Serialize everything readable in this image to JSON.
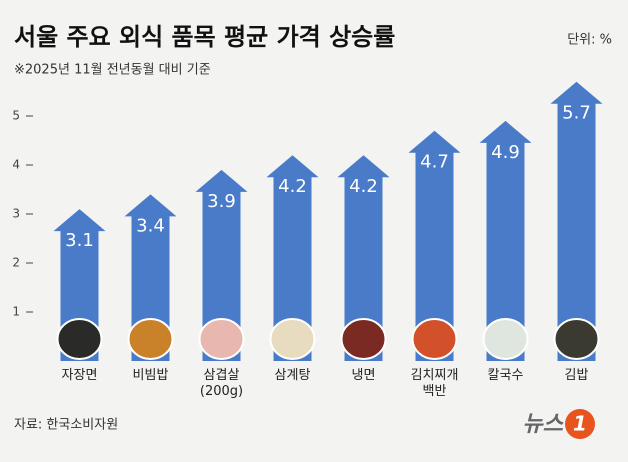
{
  "chart_data": {
    "type": "bar",
    "title": "서울 주요 외식 품목 평균 가격 상승률",
    "unit": "단위: %",
    "subtitle": "※2025년 11월 전년동월 대비 기준",
    "source": "자료: 한국소비자원",
    "logo": {
      "text": "뉴스",
      "number": "1"
    },
    "categories": [
      "자장면",
      "비빔밥",
      "삼겹살\n(200g)",
      "삼계탕",
      "냉면",
      "김치찌개\n백반",
      "칼국수",
      "김밥"
    ],
    "values": [
      3.1,
      3.4,
      3.9,
      4.2,
      4.2,
      4.7,
      4.9,
      5.7
    ],
    "color": "#4a7bc8",
    "ylim": [
      0,
      6
    ],
    "yticks": [
      1,
      2,
      3,
      4,
      5
    ]
  }
}
